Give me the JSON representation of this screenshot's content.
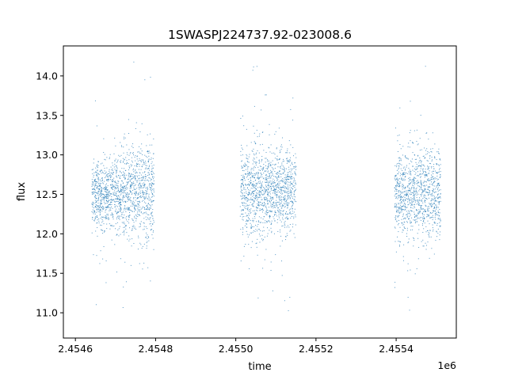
{
  "chart_data": {
    "type": "scatter",
    "title": "1SWASPJ224737.92-023008.6",
    "xlabel": "time",
    "ylabel": "flux",
    "x_offset_text": "1e6",
    "xlim": [
      2454570,
      2455550
    ],
    "ylim": [
      10.68,
      14.38
    ],
    "x_ticks": [
      2454600,
      2454800,
      2455000,
      2455200,
      2455400
    ],
    "x_tick_labels": [
      "2.4546",
      "2.4548",
      "2.4550",
      "2.4552",
      "2.4554"
    ],
    "y_ticks": [
      11.0,
      11.5,
      12.0,
      12.5,
      13.0,
      13.5,
      14.0
    ],
    "y_tick_labels": [
      "11.0",
      "11.5",
      "12.0",
      "12.5",
      "13.0",
      "13.5",
      "14.0"
    ],
    "grid": false,
    "marker_color": "#1f77b4",
    "series": [
      {
        "name": "",
        "segments": [
          {
            "x_start": 2454640,
            "x_end": 2454710,
            "y_center": 12.5,
            "y_spread": 0.22
          },
          {
            "x_start": 2454710,
            "x_end": 2454760,
            "y_center": 12.52,
            "y_spread": 0.28
          },
          {
            "x_start": 2454760,
            "x_end": 2454795,
            "y_center": 12.55,
            "y_spread": 0.33
          },
          {
            "x_start": 2455010,
            "x_end": 2455070,
            "y_center": 12.55,
            "y_spread": 0.3
          },
          {
            "x_start": 2455070,
            "x_end": 2455150,
            "y_center": 12.55,
            "y_spread": 0.26
          },
          {
            "x_start": 2455395,
            "x_end": 2455460,
            "y_center": 12.5,
            "y_spread": 0.28
          },
          {
            "x_start": 2455460,
            "x_end": 2455510,
            "y_center": 12.52,
            "y_spread": 0.3
          }
        ]
      }
    ]
  }
}
